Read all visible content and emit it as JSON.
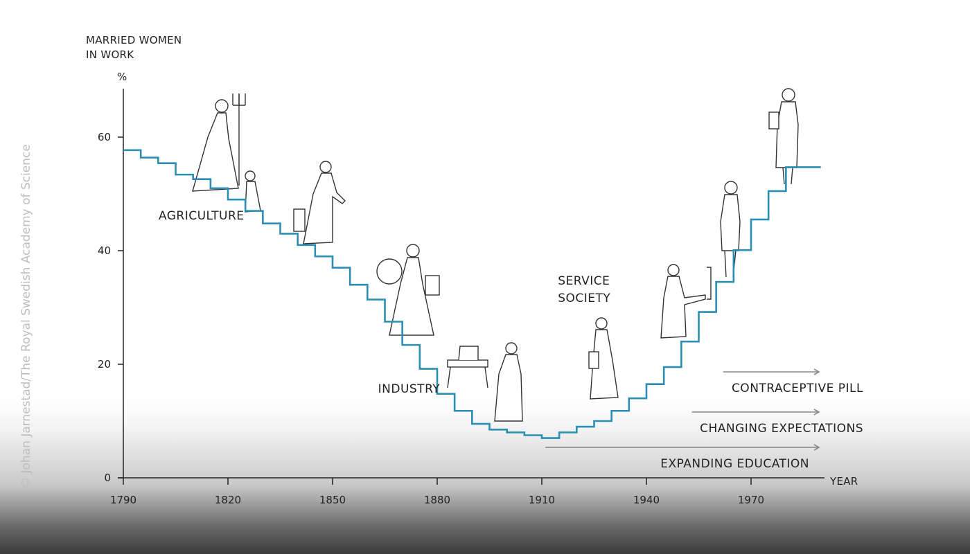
{
  "credit": "© Johan Jarnestad/The Royal Swedish Academy of Science",
  "chart_data": {
    "type": "line",
    "step": true,
    "ylabel_line1": "MARRIED WOMEN",
    "ylabel_line2": "IN WORK",
    "y_unit": "%",
    "xlabel": "YEAR",
    "xlim": [
      1790,
      1990
    ],
    "ylim": [
      0,
      70
    ],
    "x_ticks": [
      "1790",
      "1820",
      "1850",
      "1880",
      "1910",
      "1940",
      "1970"
    ],
    "y_ticks": [
      "0",
      "20",
      "40",
      "60"
    ],
    "series": [
      {
        "color": "#2b8fb3",
        "x": [
          1790,
          1795,
          1800,
          1805,
          1810,
          1815,
          1820,
          1825,
          1830,
          1835,
          1840,
          1845,
          1850,
          1855,
          1860,
          1865,
          1870,
          1875,
          1880,
          1885,
          1890,
          1895,
          1900,
          1905,
          1910,
          1915,
          1920,
          1925,
          1930,
          1935,
          1940,
          1945,
          1950,
          1955,
          1960,
          1965,
          1970,
          1975,
          1980,
          1985
        ],
        "y": [
          57.7,
          56.4,
          55.4,
          53.4,
          52.6,
          51.0,
          49.0,
          47.0,
          44.8,
          43.0,
          41.0,
          39.0,
          37.0,
          34.0,
          31.4,
          27.5,
          23.4,
          19.2,
          14.8,
          11.8,
          9.5,
          8.5,
          8.0,
          7.5,
          7.0,
          8.0,
          9.0,
          10.0,
          11.8,
          14.0,
          16.5,
          19.5,
          24.0,
          29.2,
          34.5,
          40.1,
          45.5,
          50.5,
          54.7,
          54.7
        ]
      }
    ],
    "eras": [
      {
        "label": "AGRICULTURE",
        "x": 1817,
        "y": 45.5
      },
      {
        "label": "INDUSTRY",
        "x": 1869,
        "y": 15.0
      },
      {
        "label_line1": "SERVICE",
        "label_line2": "SOCIETY",
        "x": 1918,
        "y": 34.0
      }
    ],
    "factors": [
      {
        "label": "CONTRACEPTIVE PILL",
        "start": 1962,
        "end": 1990
      },
      {
        "label": "CHANGING EXPECTATIONS",
        "start": 1953,
        "end": 1990
      },
      {
        "label": "EXPANDING EDUCATION",
        "start": 1911,
        "end": 1990
      }
    ]
  }
}
